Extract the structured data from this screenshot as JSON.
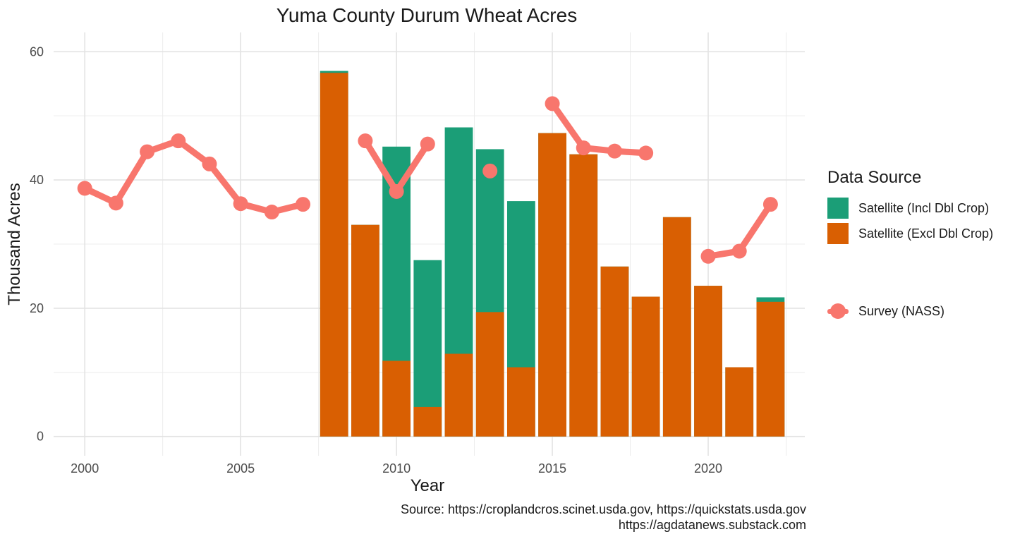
{
  "chart_data": {
    "type": "bar",
    "title": "Yuma County Durum Wheat Acres",
    "xlabel": "Year",
    "ylabel": "Thousand Acres",
    "xlim": [
      1999,
      2023.1
    ],
    "ylim": [
      -3,
      63
    ],
    "x_ticks": [
      2000,
      2005,
      2010,
      2015,
      2020
    ],
    "y_ticks": [
      0,
      20,
      40,
      60
    ],
    "grid": true,
    "legend_position": "right",
    "legend_title": "Data Source",
    "bar_series": [
      {
        "name": "Satellite (Incl Dbl Crop)",
        "color": "#1B9E77",
        "points": [
          {
            "x": 2008,
            "y": 57.0
          },
          {
            "x": 2009,
            "y": 33.0
          },
          {
            "x": 2010,
            "y": 45.2
          },
          {
            "x": 2011,
            "y": 27.5
          },
          {
            "x": 2012,
            "y": 48.2
          },
          {
            "x": 2013,
            "y": 44.8
          },
          {
            "x": 2014,
            "y": 36.7
          },
          {
            "x": 2015,
            "y": 47.3
          },
          {
            "x": 2016,
            "y": 44.0
          },
          {
            "x": 2017,
            "y": 26.5
          },
          {
            "x": 2018,
            "y": 21.8
          },
          {
            "x": 2019,
            "y": 34.2
          },
          {
            "x": 2020,
            "y": 23.5
          },
          {
            "x": 2021,
            "y": 10.8
          },
          {
            "x": 2022,
            "y": 21.7
          }
        ]
      },
      {
        "name": "Satellite (Excl Dbl Crop)",
        "color": "#D95F02",
        "points": [
          {
            "x": 2008,
            "y": 56.7
          },
          {
            "x": 2009,
            "y": 33.0
          },
          {
            "x": 2010,
            "y": 11.8
          },
          {
            "x": 2011,
            "y": 4.6
          },
          {
            "x": 2012,
            "y": 12.9
          },
          {
            "x": 2013,
            "y": 19.4
          },
          {
            "x": 2014,
            "y": 10.8
          },
          {
            "x": 2015,
            "y": 47.3
          },
          {
            "x": 2016,
            "y": 44.0
          },
          {
            "x": 2017,
            "y": 26.5
          },
          {
            "x": 2018,
            "y": 21.8
          },
          {
            "x": 2019,
            "y": 34.2
          },
          {
            "x": 2020,
            "y": 23.5
          },
          {
            "x": 2021,
            "y": 10.8
          },
          {
            "x": 2022,
            "y": 21.0
          }
        ]
      }
    ],
    "line_series": {
      "name": "Survey (NASS)",
      "color": "#F8766D",
      "segments": [
        [
          {
            "x": 2000,
            "y": 38.7
          },
          {
            "x": 2001,
            "y": 36.4
          },
          {
            "x": 2002,
            "y": 44.4
          },
          {
            "x": 2003,
            "y": 46.1
          },
          {
            "x": 2004,
            "y": 42.5
          },
          {
            "x": 2005,
            "y": 36.3
          },
          {
            "x": 2006,
            "y": 35.0
          },
          {
            "x": 2007,
            "y": 36.2
          }
        ],
        [
          {
            "x": 2009,
            "y": 46.1
          },
          {
            "x": 2010,
            "y": 38.2
          },
          {
            "x": 2011,
            "y": 45.6
          }
        ],
        [
          {
            "x": 2013,
            "y": 41.4
          }
        ],
        [
          {
            "x": 2015,
            "y": 51.9
          },
          {
            "x": 2016,
            "y": 45.0
          },
          {
            "x": 2017,
            "y": 44.5
          },
          {
            "x": 2018,
            "y": 44.2
          }
        ],
        [
          {
            "x": 2020,
            "y": 28.1
          },
          {
            "x": 2021,
            "y": 28.9
          },
          {
            "x": 2022,
            "y": 36.2
          }
        ]
      ]
    },
    "caption": [
      "Source: https://croplandcros.scinet.usda.gov, https://quickstats.usda.gov",
      "https://agdatanews.substack.com"
    ]
  }
}
